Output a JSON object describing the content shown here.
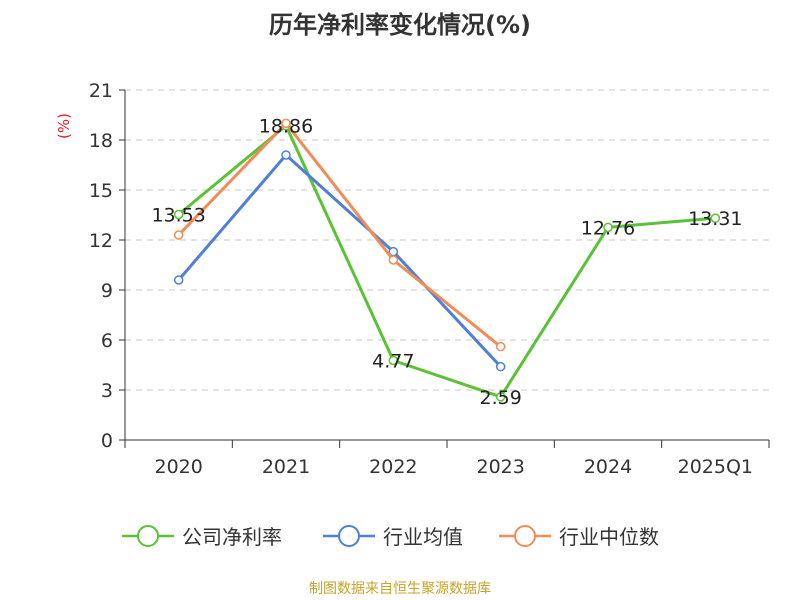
{
  "chart_data": {
    "type": "line",
    "title": "历年净利率变化情况(%)",
    "ylabel": "(%)",
    "xlabel": "",
    "categories": [
      "2020",
      "2021",
      "2022",
      "2023",
      "2024",
      "2025Q1"
    ],
    "ylim": [
      0,
      21
    ],
    "yticks": [
      0,
      3,
      6,
      9,
      12,
      15,
      18,
      21
    ],
    "grid": true,
    "legend_position": "bottom",
    "series": [
      {
        "name": "公司净利率",
        "color": "#5ac234",
        "values": [
          13.53,
          18.86,
          4.77,
          2.59,
          12.76,
          13.31
        ],
        "labels": [
          "13.53",
          "18.86",
          "4.77",
          "2.59",
          "12.76",
          "13.31"
        ]
      },
      {
        "name": "行业均值",
        "color": "#4f7fd9",
        "values": [
          9.6,
          17.1,
          11.3,
          4.4,
          null,
          null
        ]
      },
      {
        "name": "行业中位数",
        "color": "#f08c55",
        "values": [
          12.3,
          19.0,
          10.8,
          5.6,
          null,
          null
        ]
      }
    ]
  },
  "source_text": "制图数据来自恒生聚源数据库"
}
